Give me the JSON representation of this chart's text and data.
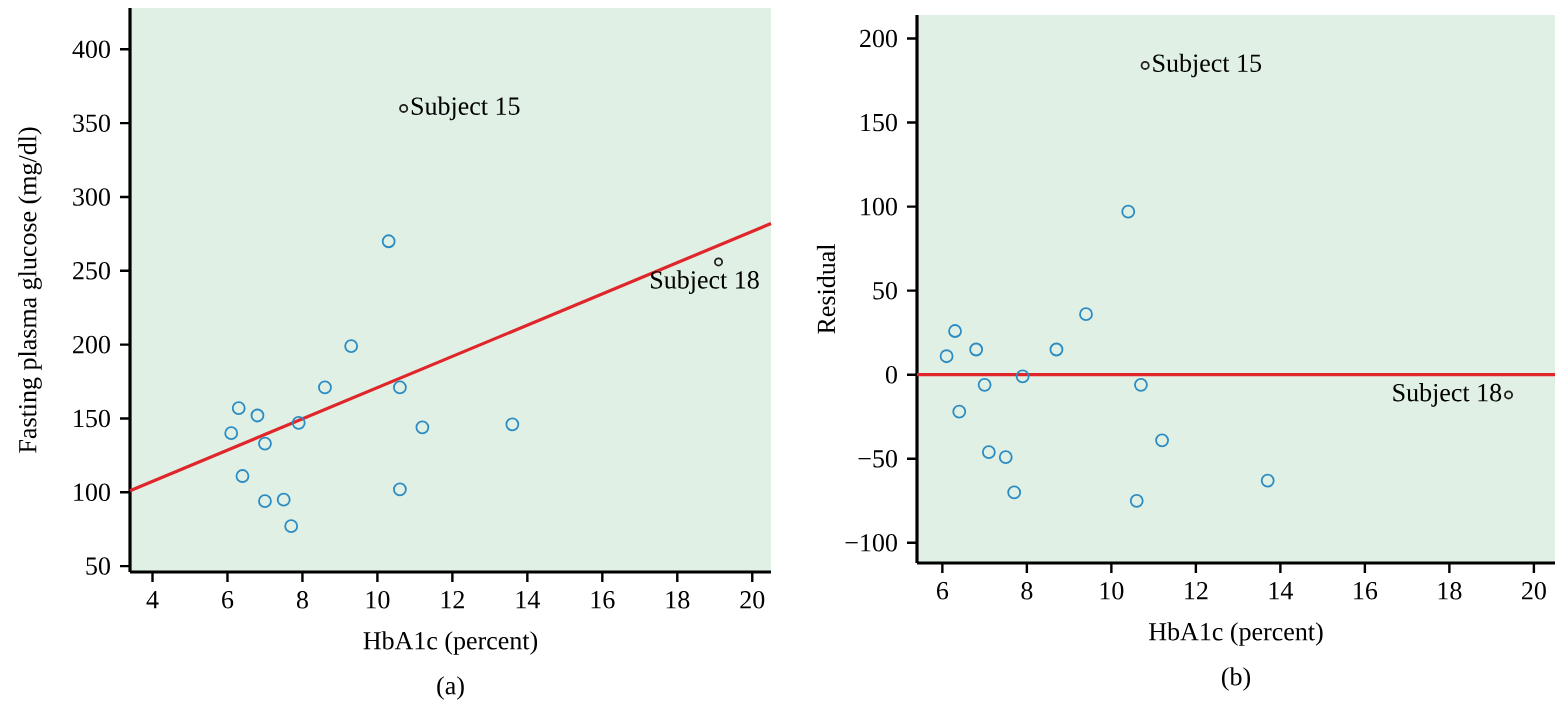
{
  "chart_data": [
    {
      "type": "scatter",
      "xlabel": "HbA1c (percent)",
      "ylabel": "Fasting plasma glucose (mg/dl)",
      "xlim": [
        3.4,
        20.5
      ],
      "ylim": [
        46,
        428
      ],
      "xticks": [
        4,
        6,
        8,
        10,
        12,
        14,
        16,
        18,
        20
      ],
      "yticks": [
        50,
        100,
        150,
        200,
        250,
        300,
        350,
        400
      ],
      "series": [
        {
          "color": "#2b8cc4",
          "marker": "circle",
          "x": [
            10.3,
            9.3,
            8.6,
            10.6,
            6.3,
            6.8,
            6.1,
            7.9,
            7.0,
            11.2,
            13.6,
            6.4,
            7.0,
            7.5,
            7.7,
            10.6
          ],
          "values": [
            270,
            199,
            171,
            171,
            157,
            152,
            140,
            147,
            133,
            144,
            146,
            111,
            94,
            95,
            77,
            102
          ]
        },
        {
          "color": "#231f20",
          "marker": "circle",
          "x": [
            10.7,
            19.1
          ],
          "values": [
            360,
            256
          ]
        },
        {
          "type": "line",
          "color": "#e0262b",
          "marker": "none",
          "x": [
            3.4,
            20.5
          ],
          "values": [
            101,
            282
          ]
        }
      ],
      "annotations": [
        {
          "text": "Subject 15",
          "x": 10.7,
          "y": 360
        },
        {
          "text": "Subject 18",
          "x": 19.1,
          "y": 256
        },
        "(a)"
      ]
    },
    {
      "type": "scatter",
      "xlabel": "HbA1c (percent)",
      "ylabel": "Residual",
      "xlim": [
        5.4,
        20.5
      ],
      "ylim": [
        -112,
        214
      ],
      "xticks": [
        6,
        8,
        10,
        12,
        14,
        16,
        18,
        20
      ],
      "yticks": [
        {
          "value": -100,
          "label": "−100"
        },
        {
          "value": -50,
          "label": "−50"
        },
        0,
        50,
        100,
        150,
        200
      ],
      "series": [
        {
          "color": "#2b8cc4",
          "marker": "circle",
          "x": [
            10.4,
            9.4,
            6.3,
            6.8,
            6.1,
            8.7,
            7.9,
            7.0,
            10.7,
            6.4,
            11.2,
            7.1,
            7.5,
            7.7,
            10.6,
            13.7
          ],
          "values": [
            97,
            36,
            26,
            15,
            11,
            15,
            -1,
            -6,
            -6,
            -22,
            -39,
            -46,
            -49,
            -70,
            -75,
            -63
          ]
        },
        {
          "color": "#231f20",
          "marker": "circle",
          "x": [
            10.8,
            19.4
          ],
          "values": [
            184,
            -12
          ]
        }
      ],
      "ref_lines": [
        {
          "axis": "y",
          "value": 0,
          "color": "#e0262b"
        }
      ],
      "annotations": [
        {
          "text": "Subject 15",
          "x": 10.8,
          "y": 184
        },
        {
          "text": "Subject 18",
          "x": 19.4,
          "y": -12
        },
        "(b)"
      ]
    }
  ]
}
